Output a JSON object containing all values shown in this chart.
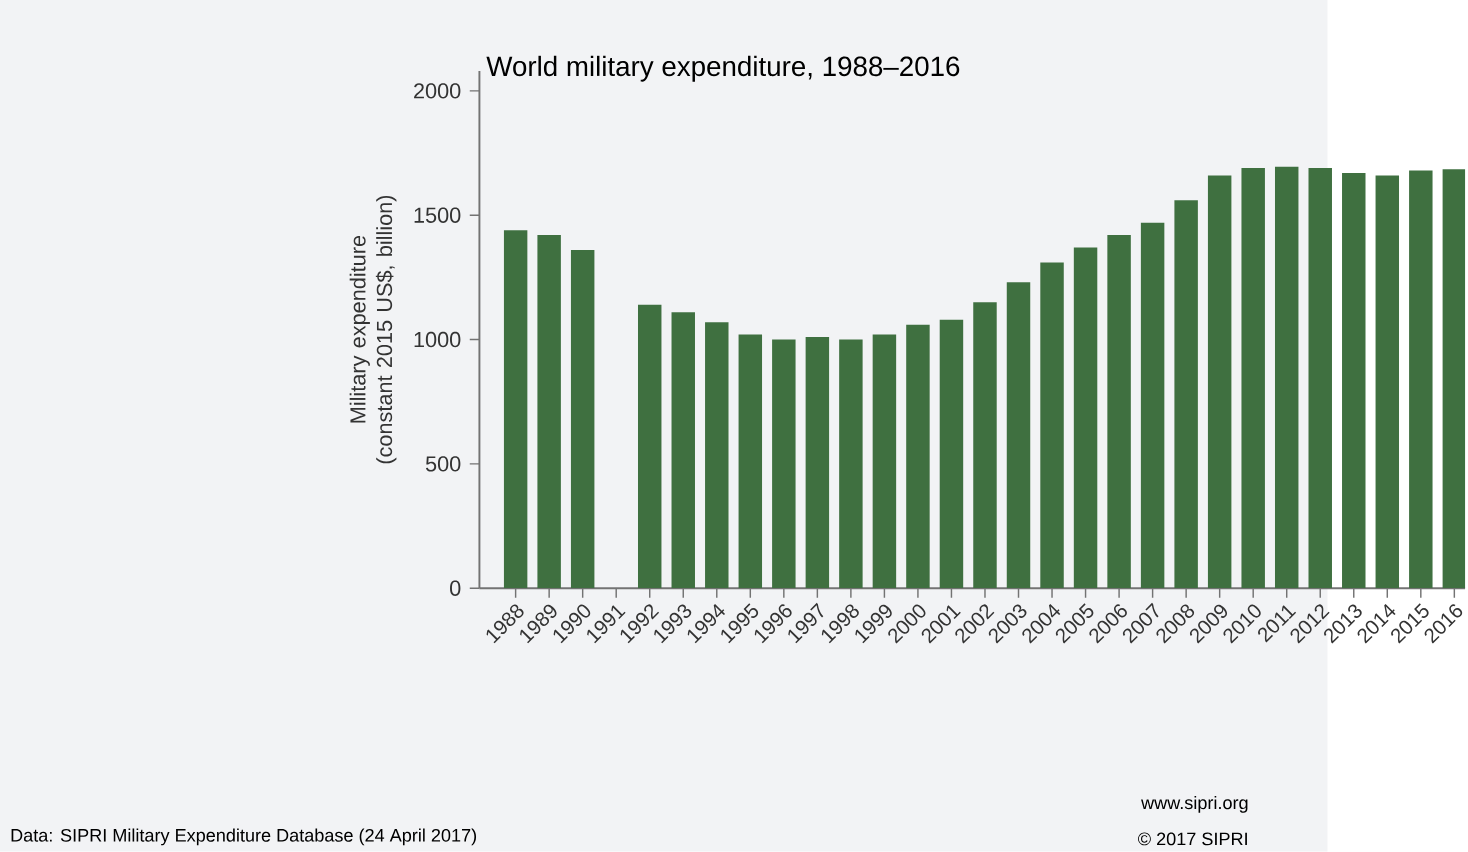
{
  "chart_data": {
    "type": "bar",
    "title": "World military expenditure, 1988–2016",
    "ylabel": "Military expenditure (constant 2015 US$, billion)",
    "categories": [
      "1988",
      "1989",
      "1990",
      "1991",
      "1992",
      "1993",
      "1994",
      "1995",
      "1996",
      "1997",
      "1998",
      "1999",
      "2000",
      "2001",
      "2002",
      "2003",
      "2004",
      "2005",
      "2006",
      "2007",
      "2008",
      "2009",
      "2010",
      "2011",
      "2012",
      "2013",
      "2014",
      "2015",
      "2016"
    ],
    "values": [
      1440,
      1420,
      1360,
      null,
      1140,
      1110,
      1070,
      1020,
      1000,
      1010,
      1000,
      1020,
      1060,
      1080,
      1150,
      1230,
      1310,
      1370,
      1420,
      1470,
      1560,
      1660,
      1690,
      1695,
      1690,
      1670,
      1660,
      1680,
      1685
    ],
    "color": "#3f7040",
    "ylim": [
      0,
      2080
    ],
    "yticks": [
      0,
      500,
      1000,
      1500,
      2000
    ],
    "grid": false,
    "annotations": [
      "Data: SIPRI Military Expenditure Database (24 April 2017)",
      "www.sipri.org",
      "© 2017 SIPRI"
    ]
  }
}
